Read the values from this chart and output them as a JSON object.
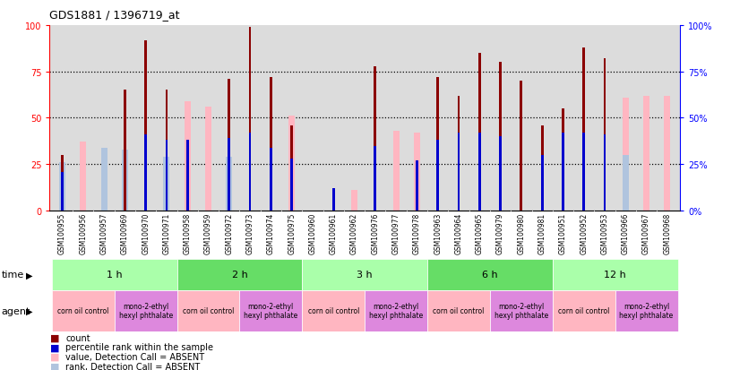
{
  "title": "GDS1881 / 1396719_at",
  "samples": [
    "GSM100955",
    "GSM100956",
    "GSM100957",
    "GSM100969",
    "GSM100970",
    "GSM100971",
    "GSM100958",
    "GSM100959",
    "GSM100972",
    "GSM100973",
    "GSM100974",
    "GSM100975",
    "GSM100960",
    "GSM100961",
    "GSM100962",
    "GSM100976",
    "GSM100977",
    "GSM100978",
    "GSM100963",
    "GSM100964",
    "GSM100965",
    "GSM100979",
    "GSM100980",
    "GSM100981",
    "GSM100951",
    "GSM100952",
    "GSM100953",
    "GSM100966",
    "GSM100967",
    "GSM100968"
  ],
  "count": [
    30,
    0,
    0,
    65,
    92,
    65,
    0,
    0,
    71,
    99,
    72,
    46,
    0,
    12,
    0,
    78,
    0,
    0,
    72,
    62,
    85,
    80,
    70,
    46,
    55,
    88,
    82,
    0,
    0,
    0
  ],
  "percentile_rank": [
    21,
    0,
    0,
    0,
    41,
    38,
    38,
    0,
    39,
    42,
    34,
    28,
    0,
    12,
    0,
    35,
    0,
    27,
    38,
    42,
    42,
    40,
    0,
    30,
    42,
    42,
    41,
    0,
    0,
    0
  ],
  "value_absent": [
    0,
    37,
    0,
    0,
    0,
    0,
    59,
    56,
    0,
    0,
    0,
    51,
    0,
    0,
    11,
    0,
    43,
    42,
    0,
    0,
    0,
    0,
    0,
    0,
    0,
    0,
    0,
    61,
    62,
    62
  ],
  "rank_absent": [
    26,
    0,
    34,
    33,
    0,
    29,
    0,
    0,
    29,
    0,
    0,
    0,
    0,
    0,
    0,
    0,
    0,
    0,
    0,
    0,
    0,
    0,
    0,
    0,
    0,
    0,
    0,
    30,
    0,
    0
  ],
  "time_groups": [
    {
      "label": "1 h",
      "start": 0,
      "end": 6
    },
    {
      "label": "2 h",
      "start": 6,
      "end": 12
    },
    {
      "label": "3 h",
      "start": 12,
      "end": 18
    },
    {
      "label": "6 h",
      "start": 18,
      "end": 24
    },
    {
      "label": "12 h",
      "start": 24,
      "end": 30
    }
  ],
  "agent_groups": [
    {
      "label": "corn oil control",
      "start": 0,
      "end": 3,
      "type": "corn"
    },
    {
      "label": "mono-2-ethyl\nhexyl phthalate",
      "start": 3,
      "end": 6,
      "type": "mono"
    },
    {
      "label": "corn oil control",
      "start": 6,
      "end": 9,
      "type": "corn"
    },
    {
      "label": "mono-2-ethyl\nhexyl phthalate",
      "start": 9,
      "end": 12,
      "type": "mono"
    },
    {
      "label": "corn oil control",
      "start": 12,
      "end": 15,
      "type": "corn"
    },
    {
      "label": "mono-2-ethyl\nhexyl phthalate",
      "start": 15,
      "end": 18,
      "type": "mono"
    },
    {
      "label": "corn oil control",
      "start": 18,
      "end": 21,
      "type": "corn"
    },
    {
      "label": "mono-2-ethyl\nhexyl phthalate",
      "start": 21,
      "end": 24,
      "type": "mono"
    },
    {
      "label": "corn oil control",
      "start": 24,
      "end": 27,
      "type": "corn"
    },
    {
      "label": "mono-2-ethyl\nhexyl phthalate",
      "start": 27,
      "end": 30,
      "type": "mono"
    }
  ],
  "color_count": "#8B0000",
  "color_percentile": "#0000CD",
  "color_value_absent": "#FFB6C1",
  "color_rank_absent": "#B0C4DE",
  "ylim": [
    0,
    100
  ],
  "yticks": [
    0,
    25,
    50,
    75,
    100
  ],
  "time_color_light": "#AAFFAA",
  "time_color_dark": "#66DD66",
  "agent_color_corn": "#FFB6C1",
  "agent_color_mono": "#DD88DD",
  "bg_plot": "#DCDCDC",
  "bg_xtick": "#C8C8C8"
}
